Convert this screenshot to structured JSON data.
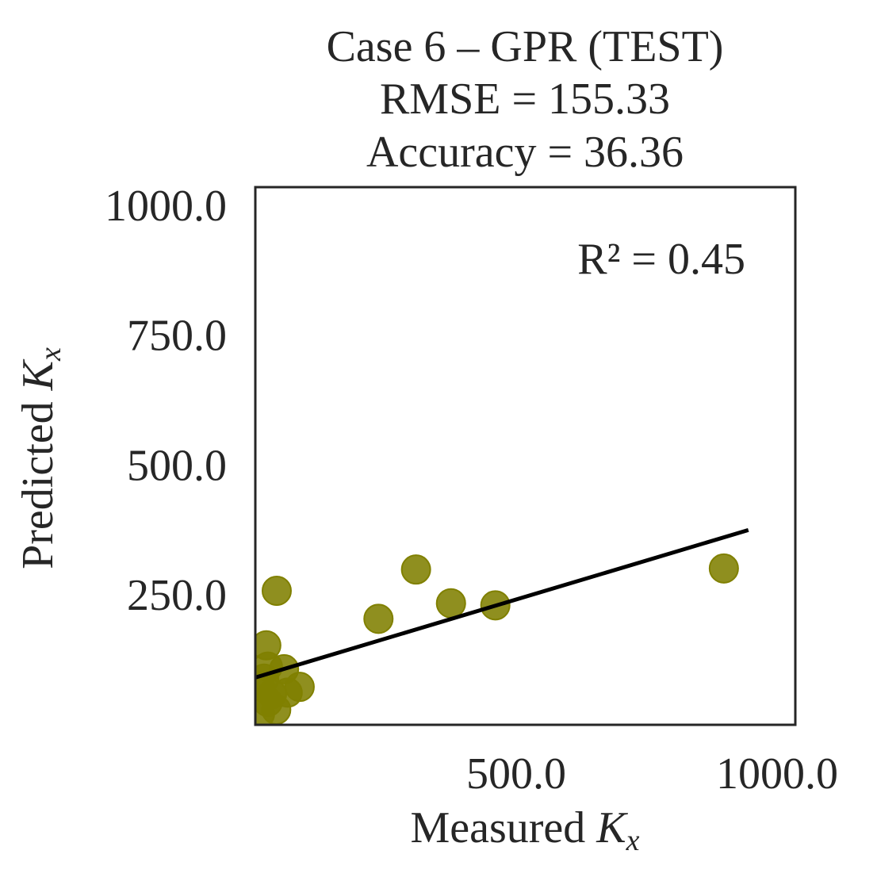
{
  "chart_data": {
    "type": "scatter",
    "title": [
      "Case 6 – GPR (TEST)",
      "RMSE = 155.33",
      "Accuracy = 36.36"
    ],
    "xlabel": "Measured",
    "ylabel": "Predicted",
    "axis_symbol": "K",
    "axis_subscript": "x",
    "annotation": "R² = 0.45",
    "x": [
      898,
      308,
      375,
      460,
      236,
      41,
      21,
      24,
      55,
      85,
      62,
      32,
      9,
      24,
      40,
      9,
      17
    ],
    "values": [
      301,
      299,
      234,
      230,
      204,
      258,
      153,
      112,
      107,
      73,
      62,
      59,
      74,
      44,
      29,
      21,
      89
    ],
    "color": "#808000",
    "fit_line": {
      "x": [
        0,
        945
      ],
      "y": [
        91,
        375
      ],
      "color": "#000000"
    },
    "xlim": [
      0,
      1035
    ],
    "ylim": [
      0,
      1035
    ],
    "xticks": [
      {
        "value": 500,
        "label": "500.0"
      },
      {
        "value": 1000,
        "label": "1000.0"
      }
    ],
    "yticks": [
      {
        "value": 250,
        "label": "250.0"
      },
      {
        "value": 500,
        "label": "500.0"
      },
      {
        "value": 750,
        "label": "750.0"
      },
      {
        "value": 1000,
        "label": "1000.0"
      }
    ],
    "grid": false
  }
}
